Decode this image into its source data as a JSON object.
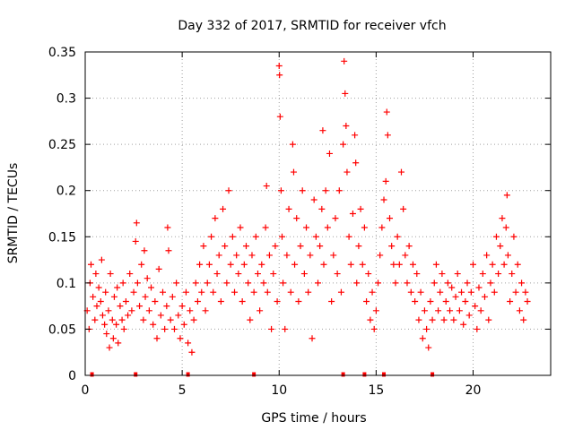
{
  "chart_data": {
    "type": "scatter",
    "title": "Day 332 of 2017, SRMTID for receiver vfch",
    "xlabel": "GPS time / hours",
    "ylabel": "SRMTID / TECUs",
    "xlim": [
      0,
      24
    ],
    "ylim": [
      0,
      0.35
    ],
    "x_ticks": [
      0,
      5,
      10,
      15,
      20
    ],
    "x_tick_labels": [
      "0",
      "5",
      "10",
      "15",
      "20"
    ],
    "y_ticks": [
      0,
      0.05,
      0.1,
      0.15,
      0.2,
      0.25,
      0.3,
      0.35
    ],
    "y_tick_labels": [
      "0",
      "0.05",
      "0.1",
      "0.15",
      "0.2",
      "0.25",
      "0.3",
      "0.35"
    ],
    "grid": true,
    "marker": "+",
    "color": "#ff0000",
    "series": [
      {
        "name": "SRMTID",
        "points": [
          [
            0.1,
            0.07
          ],
          [
            0.2,
            0.05
          ],
          [
            0.25,
            0.1
          ],
          [
            0.3,
            0.12
          ],
          [
            0.4,
            0.085
          ],
          [
            0.5,
            0.06
          ],
          [
            0.55,
            0.11
          ],
          [
            0.6,
            0.075
          ],
          [
            0.7,
            0.095
          ],
          [
            0.8,
            0.08
          ],
          [
            0.85,
            0.125
          ],
          [
            0.9,
            0.065
          ],
          [
            1.0,
            0.055
          ],
          [
            1.05,
            0.09
          ],
          [
            1.1,
            0.045
          ],
          [
            1.2,
            0.07
          ],
          [
            1.25,
            0.03
          ],
          [
            1.3,
            0.11
          ],
          [
            1.4,
            0.06
          ],
          [
            1.45,
            0.04
          ],
          [
            1.5,
            0.085
          ],
          [
            1.6,
            0.055
          ],
          [
            1.65,
            0.095
          ],
          [
            1.7,
            0.035
          ],
          [
            1.8,
            0.075
          ],
          [
            1.9,
            0.06
          ],
          [
            1.95,
            0.1
          ],
          [
            2.0,
            0.05
          ],
          [
            2.1,
            0.08
          ],
          [
            2.2,
            0.065
          ],
          [
            2.3,
            0.11
          ],
          [
            2.4,
            0.07
          ],
          [
            2.5,
            0.09
          ],
          [
            2.6,
            0.145
          ],
          [
            2.65,
            0.165
          ],
          [
            2.7,
            0.1
          ],
          [
            2.8,
            0.075
          ],
          [
            2.9,
            0.12
          ],
          [
            3.0,
            0.06
          ],
          [
            3.05,
            0.135
          ],
          [
            3.1,
            0.085
          ],
          [
            3.2,
            0.105
          ],
          [
            3.3,
            0.07
          ],
          [
            3.4,
            0.095
          ],
          [
            3.5,
            0.055
          ],
          [
            3.6,
            0.08
          ],
          [
            3.7,
            0.04
          ],
          [
            3.8,
            0.115
          ],
          [
            3.9,
            0.065
          ],
          [
            4.0,
            0.09
          ],
          [
            4.1,
            0.05
          ],
          [
            4.2,
            0.075
          ],
          [
            4.25,
            0.16
          ],
          [
            4.3,
            0.135
          ],
          [
            4.4,
            0.06
          ],
          [
            4.5,
            0.085
          ],
          [
            4.6,
            0.05
          ],
          [
            4.7,
            0.1
          ],
          [
            4.8,
            0.065
          ],
          [
            4.9,
            0.04
          ],
          [
            5.0,
            0.075
          ],
          [
            5.1,
            0.055
          ],
          [
            5.2,
            0.09
          ],
          [
            5.3,
            0.035
          ],
          [
            5.4,
            0.07
          ],
          [
            5.5,
            0.025
          ],
          [
            5.6,
            0.06
          ],
          [
            5.7,
            0.1
          ],
          [
            5.8,
            0.08
          ],
          [
            5.9,
            0.12
          ],
          [
            6.0,
            0.09
          ],
          [
            6.1,
            0.14
          ],
          [
            6.2,
            0.07
          ],
          [
            6.3,
            0.1
          ],
          [
            6.4,
            0.12
          ],
          [
            6.5,
            0.15
          ],
          [
            6.6,
            0.09
          ],
          [
            6.7,
            0.17
          ],
          [
            6.8,
            0.11
          ],
          [
            6.9,
            0.13
          ],
          [
            7.0,
            0.08
          ],
          [
            7.1,
            0.18
          ],
          [
            7.2,
            0.14
          ],
          [
            7.3,
            0.1
          ],
          [
            7.4,
            0.2
          ],
          [
            7.5,
            0.12
          ],
          [
            7.6,
            0.15
          ],
          [
            7.7,
            0.09
          ],
          [
            7.8,
            0.13
          ],
          [
            7.9,
            0.11
          ],
          [
            8.0,
            0.16
          ],
          [
            8.1,
            0.08
          ],
          [
            8.2,
            0.12
          ],
          [
            8.3,
            0.14
          ],
          [
            8.4,
            0.1
          ],
          [
            8.5,
            0.06
          ],
          [
            8.6,
            0.13
          ],
          [
            8.7,
            0.09
          ],
          [
            8.8,
            0.15
          ],
          [
            8.9,
            0.11
          ],
          [
            9.0,
            0.07
          ],
          [
            9.1,
            0.12
          ],
          [
            9.2,
            0.1
          ],
          [
            9.3,
            0.16
          ],
          [
            9.35,
            0.205
          ],
          [
            9.4,
            0.09
          ],
          [
            9.5,
            0.13
          ],
          [
            9.6,
            0.05
          ],
          [
            9.7,
            0.11
          ],
          [
            9.8,
            0.14
          ],
          [
            9.9,
            0.08
          ],
          [
            10.0,
            0.335
          ],
          [
            10.02,
            0.325
          ],
          [
            10.05,
            0.28
          ],
          [
            10.1,
            0.2
          ],
          [
            10.15,
            0.15
          ],
          [
            10.2,
            0.1
          ],
          [
            10.3,
            0.05
          ],
          [
            10.4,
            0.13
          ],
          [
            10.5,
            0.18
          ],
          [
            10.6,
            0.09
          ],
          [
            10.7,
            0.25
          ],
          [
            10.75,
            0.22
          ],
          [
            10.8,
            0.12
          ],
          [
            10.9,
            0.17
          ],
          [
            11.0,
            0.08
          ],
          [
            11.1,
            0.14
          ],
          [
            11.2,
            0.2
          ],
          [
            11.3,
            0.11
          ],
          [
            11.4,
            0.16
          ],
          [
            11.5,
            0.09
          ],
          [
            11.6,
            0.13
          ],
          [
            11.7,
            0.04
          ],
          [
            11.8,
            0.19
          ],
          [
            11.9,
            0.15
          ],
          [
            12.0,
            0.1
          ],
          [
            12.1,
            0.14
          ],
          [
            12.2,
            0.18
          ],
          [
            12.25,
            0.265
          ],
          [
            12.3,
            0.12
          ],
          [
            12.4,
            0.2
          ],
          [
            12.5,
            0.16
          ],
          [
            12.6,
            0.24
          ],
          [
            12.7,
            0.08
          ],
          [
            12.8,
            0.13
          ],
          [
            12.9,
            0.17
          ],
          [
            13.0,
            0.11
          ],
          [
            13.1,
            0.2
          ],
          [
            13.2,
            0.09
          ],
          [
            13.3,
            0.25
          ],
          [
            13.35,
            0.34
          ],
          [
            13.4,
            0.305
          ],
          [
            13.45,
            0.27
          ],
          [
            13.5,
            0.22
          ],
          [
            13.6,
            0.15
          ],
          [
            13.7,
            0.12
          ],
          [
            13.8,
            0.175
          ],
          [
            13.9,
            0.26
          ],
          [
            13.95,
            0.23
          ],
          [
            14.0,
            0.1
          ],
          [
            14.1,
            0.14
          ],
          [
            14.2,
            0.18
          ],
          [
            14.3,
            0.12
          ],
          [
            14.4,
            0.16
          ],
          [
            14.5,
            0.08
          ],
          [
            14.6,
            0.11
          ],
          [
            14.7,
            0.06
          ],
          [
            14.8,
            0.09
          ],
          [
            14.9,
            0.05
          ],
          [
            15.0,
            0.07
          ],
          [
            15.1,
            0.1
          ],
          [
            15.2,
            0.13
          ],
          [
            15.3,
            0.16
          ],
          [
            15.4,
            0.19
          ],
          [
            15.5,
            0.21
          ],
          [
            15.55,
            0.285
          ],
          [
            15.6,
            0.26
          ],
          [
            15.7,
            0.17
          ],
          [
            15.8,
            0.14
          ],
          [
            15.9,
            0.12
          ],
          [
            16.0,
            0.1
          ],
          [
            16.1,
            0.15
          ],
          [
            16.2,
            0.12
          ],
          [
            16.3,
            0.22
          ],
          [
            16.4,
            0.18
          ],
          [
            16.5,
            0.13
          ],
          [
            16.6,
            0.1
          ],
          [
            16.7,
            0.14
          ],
          [
            16.8,
            0.09
          ],
          [
            16.9,
            0.12
          ],
          [
            17.0,
            0.08
          ],
          [
            17.1,
            0.11
          ],
          [
            17.2,
            0.06
          ],
          [
            17.3,
            0.09
          ],
          [
            17.4,
            0.04
          ],
          [
            17.5,
            0.07
          ],
          [
            17.6,
            0.05
          ],
          [
            17.7,
            0.03
          ],
          [
            17.8,
            0.08
          ],
          [
            17.9,
            0.06
          ],
          [
            18.0,
            0.1
          ],
          [
            18.1,
            0.12
          ],
          [
            18.2,
            0.07
          ],
          [
            18.3,
            0.09
          ],
          [
            18.4,
            0.11
          ],
          [
            18.5,
            0.06
          ],
          [
            18.6,
            0.08
          ],
          [
            18.7,
            0.1
          ],
          [
            18.8,
            0.07
          ],
          [
            18.9,
            0.095
          ],
          [
            19.0,
            0.06
          ],
          [
            19.1,
            0.085
          ],
          [
            19.2,
            0.11
          ],
          [
            19.3,
            0.07
          ],
          [
            19.4,
            0.09
          ],
          [
            19.5,
            0.055
          ],
          [
            19.6,
            0.08
          ],
          [
            19.7,
            0.1
          ],
          [
            19.8,
            0.065
          ],
          [
            19.9,
            0.09
          ],
          [
            20.0,
            0.12
          ],
          [
            20.1,
            0.075
          ],
          [
            20.2,
            0.05
          ],
          [
            20.3,
            0.095
          ],
          [
            20.4,
            0.07
          ],
          [
            20.5,
            0.11
          ],
          [
            20.6,
            0.085
          ],
          [
            20.7,
            0.13
          ],
          [
            20.8,
            0.06
          ],
          [
            20.9,
            0.1
          ],
          [
            21.0,
            0.12
          ],
          [
            21.1,
            0.09
          ],
          [
            21.2,
            0.15
          ],
          [
            21.3,
            0.11
          ],
          [
            21.4,
            0.14
          ],
          [
            21.5,
            0.17
          ],
          [
            21.6,
            0.12
          ],
          [
            21.7,
            0.16
          ],
          [
            21.75,
            0.195
          ],
          [
            21.8,
            0.13
          ],
          [
            21.9,
            0.08
          ],
          [
            22.0,
            0.11
          ],
          [
            22.1,
            0.15
          ],
          [
            22.2,
            0.09
          ],
          [
            22.3,
            0.12
          ],
          [
            22.4,
            0.07
          ],
          [
            22.5,
            0.1
          ],
          [
            22.6,
            0.06
          ],
          [
            22.7,
            0.09
          ],
          [
            22.8,
            0.08
          ]
        ]
      }
    ],
    "baseline_markers_x": [
      0.35,
      2.6,
      5.3,
      8.7,
      13.3,
      14.4,
      15.4,
      17.9
    ]
  }
}
